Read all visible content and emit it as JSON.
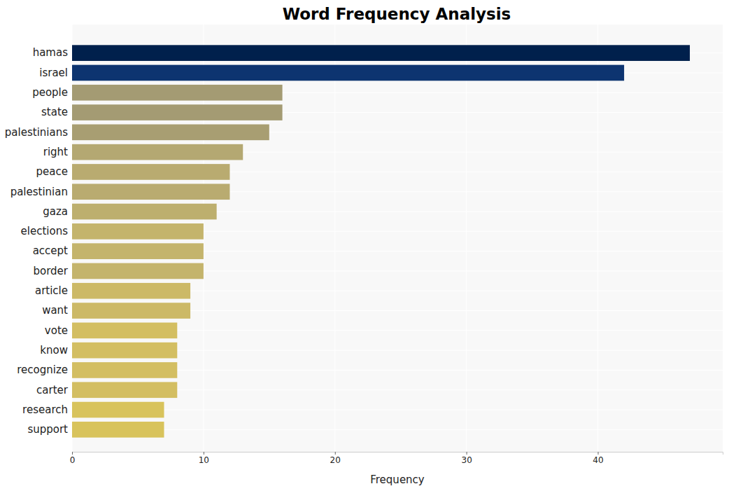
{
  "chart_data": {
    "type": "bar",
    "orientation": "horizontal",
    "title": "Word Frequency Analysis",
    "x_label": "Frequency",
    "categories": [
      "hamas",
      "israel",
      "people",
      "state",
      "palestinians",
      "right",
      "peace",
      "palestinian",
      "gaza",
      "elections",
      "accept",
      "border",
      "article",
      "want",
      "vote",
      "know",
      "recognize",
      "carter",
      "research",
      "support"
    ],
    "values": [
      47,
      42,
      16,
      16,
      15,
      13,
      12,
      12,
      11,
      10,
      10,
      10,
      9,
      9,
      8,
      8,
      8,
      8,
      7,
      7
    ],
    "colors": [
      "#00204c",
      "#0d3470",
      "#a49b73",
      "#a49b73",
      "#a89e72",
      "#b4a872",
      "#b9ab70",
      "#b9ab70",
      "#bdaf6e",
      "#c4b46c",
      "#c4b46c",
      "#c4b46c",
      "#ccb967",
      "#ccb967",
      "#d3be62",
      "#d3be62",
      "#d3be62",
      "#d3be62",
      "#d8c35c",
      "#d8c35c"
    ],
    "xlim": [
      0,
      49.5
    ],
    "xticks": [
      0,
      10,
      20,
      30,
      40
    ],
    "grid": true
  }
}
